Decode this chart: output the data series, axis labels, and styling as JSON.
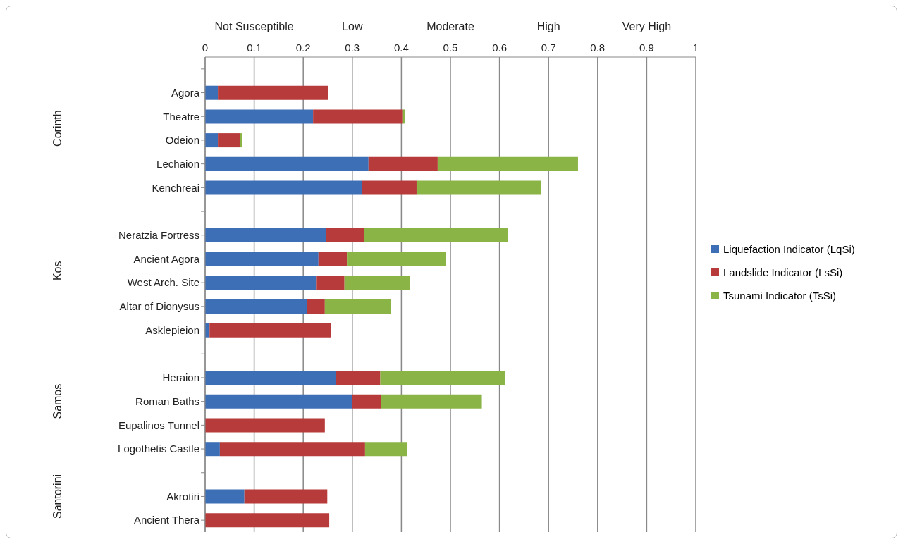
{
  "chart_data": {
    "type": "bar",
    "orientation": "horizontal",
    "stacked": true,
    "categories": [
      null,
      "Agora",
      "Theatre",
      "Odeion",
      "Lechaion",
      "Kenchreai",
      null,
      "Neratzia Fortress",
      "Ancient Agora",
      "West Arch. Site",
      "Altar of Dionysus",
      "Asklepieion",
      null,
      "Heraion",
      "Roman Baths",
      "Eupalinos Tunnel",
      "Logothetis Castle",
      null,
      "Akrotiri",
      "Ancient Thera"
    ],
    "series": [
      {
        "name": "Liquefaction Indicator (LqSi)",
        "color": "#3d6fb6",
        "values": [
          null,
          0.026,
          0.22,
          0.026,
          0.333,
          0.32,
          null,
          0.246,
          0.231,
          0.226,
          0.207,
          0.009,
          null,
          0.266,
          0.3,
          0,
          0.03,
          null,
          0.08,
          0
        ]
      },
      {
        "name": "Landslide Indicator (LsSi)",
        "color": "#b83b3b",
        "values": [
          null,
          0.224,
          0.182,
          0.045,
          0.141,
          0.111,
          null,
          0.078,
          0.058,
          0.058,
          0.037,
          0.248,
          null,
          0.091,
          0.058,
          0.244,
          0.296,
          null,
          0.169,
          0.253
        ]
      },
      {
        "name": "Tsunami Indicator (TsSi)",
        "color": "#8ab446",
        "values": [
          null,
          0,
          0.006,
          0.005,
          0.286,
          0.253,
          null,
          0.293,
          0.201,
          0.134,
          0.134,
          0,
          null,
          0.254,
          0.206,
          0,
          0.086,
          null,
          0,
          0
        ]
      }
    ],
    "xlim": [
      0,
      1
    ],
    "xticks": [
      0,
      0.1,
      0.2,
      0.3,
      0.4,
      0.5,
      0.6,
      0.7,
      0.8,
      0.9,
      1
    ],
    "grid": "x",
    "legend": "right",
    "annotations": [
      "Not Susceptible",
      "Low",
      "Moderate",
      "High",
      "Very High",
      "Corinth",
      "Kos",
      "Samos",
      "Santorini"
    ]
  }
}
